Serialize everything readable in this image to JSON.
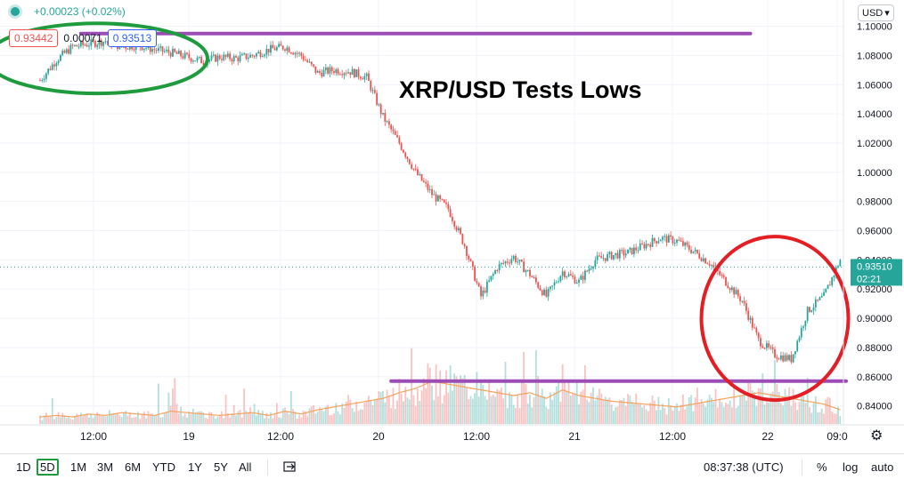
{
  "header": {
    "change": "+0.00023 (+0.02%)",
    "bid": "0.93442",
    "spread": "0.00071",
    "ask": "0.93513",
    "currency": "USD"
  },
  "chart_data": {
    "type": "line",
    "title": "XRP/USD Tests Lows",
    "x_tick_labels": [
      "12:00",
      "19",
      "12:00",
      "20",
      "12:00",
      "21",
      "12:00",
      "22",
      "09:0"
    ],
    "y_ticks": [
      0.84,
      0.86,
      0.88,
      0.9,
      0.92,
      0.94,
      0.96,
      0.98,
      1.0,
      1.02,
      1.04,
      1.06,
      1.08,
      1.1
    ],
    "ylim": [
      0.827,
      1.118
    ],
    "current_price": "0.93510",
    "countdown": "02:21",
    "x": [
      "18 06:00",
      "18 08:00",
      "18 10:00",
      "18 12:00",
      "18 14:00",
      "18 16:00",
      "18 18:00",
      "18 20:00",
      "18 22:00",
      "19 00:00",
      "19 02:00",
      "19 04:00",
      "19 06:00",
      "19 08:00",
      "19 10:00",
      "19 12:00",
      "19 14:00",
      "19 16:00",
      "19 18:00",
      "19 20:00",
      "19 22:00",
      "20 00:00",
      "20 02:00",
      "20 04:00",
      "20 06:00",
      "20 08:00",
      "20 10:00",
      "20 12:00",
      "20 14:00",
      "20 16:00",
      "20 18:00",
      "20 20:00",
      "20 22:00",
      "21 00:00",
      "21 02:00",
      "21 04:00",
      "21 06:00",
      "21 08:00",
      "21 10:00",
      "21 12:00",
      "21 14:00",
      "21 16:00",
      "21 18:00",
      "21 20:00",
      "21 22:00",
      "22 00:00",
      "22 02:00",
      "22 04:00",
      "22 06:00",
      "22 08:00",
      "22 09:00"
    ],
    "series": [
      {
        "values": [
          1.063,
          1.077,
          1.086,
          1.088,
          1.09,
          1.086,
          1.087,
          1.084,
          1.082,
          1.079,
          1.076,
          1.079,
          1.078,
          1.08,
          1.084,
          1.086,
          1.08,
          1.068,
          1.07,
          1.069,
          1.065,
          1.038,
          1.02,
          1.0,
          0.985,
          0.975,
          0.95,
          0.915,
          0.935,
          0.942,
          0.93,
          0.915,
          0.932,
          0.925,
          0.94,
          0.943,
          0.945,
          0.95,
          0.955,
          0.953,
          0.946,
          0.938,
          0.925,
          0.912,
          0.885,
          0.875,
          0.872,
          0.905,
          0.915,
          0.94,
          0.935
        ]
      }
    ],
    "volume": [
      5,
      6,
      5,
      7,
      6,
      8,
      7,
      6,
      9,
      8,
      7,
      6,
      7,
      8,
      6,
      9,
      7,
      10,
      12,
      14,
      16,
      18,
      22,
      25,
      30,
      28,
      26,
      24,
      22,
      20,
      22,
      18,
      24,
      20,
      18,
      16,
      15,
      14,
      13,
      12,
      14,
      16,
      18,
      20,
      22,
      20,
      18,
      16,
      14,
      10,
      8
    ],
    "annotations": [
      {
        "type": "horizontal-line",
        "value": 1.095,
        "color": "#9c4db5",
        "from": "18 11:00",
        "to": "21 21:00"
      },
      {
        "type": "horizontal-line",
        "value": 0.857,
        "color": "#9c4db5",
        "from": "20 01:00",
        "to": "22 09:00"
      },
      {
        "type": "ellipse",
        "color": "#1e9b3c",
        "center_x": "18 13:00",
        "center_y": 1.078,
        "rx_hours": 13.5,
        "ry": 0.024
      },
      {
        "type": "ellipse",
        "color": "#e31e24",
        "center_x": "22 00:00",
        "center_y": 0.9,
        "rx_hours": 9,
        "ry": 0.056
      }
    ],
    "colors": {
      "up": "#26a69a",
      "down": "#ef5350",
      "volume_ma": "#f7a35c",
      "price_label_bg": "#26a69a"
    }
  },
  "bottom": {
    "timeframes": [
      "1D",
      "5D",
      "1M",
      "3M",
      "6M",
      "YTD",
      "1Y",
      "5Y",
      "All"
    ],
    "active": "5D",
    "clock": "08:37:38 (UTC)",
    "percent": "%",
    "log": "log",
    "auto": "auto"
  }
}
